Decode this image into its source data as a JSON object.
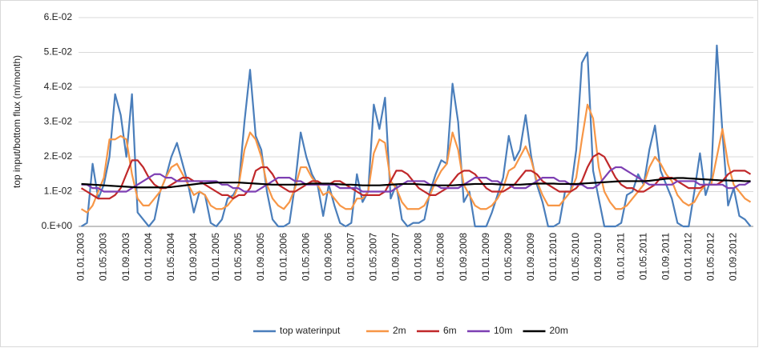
{
  "chart_data": {
    "type": "line",
    "y_label": "top input/bottom flux (m/month)",
    "categories": [
      "01.01.2003",
      null,
      null,
      null,
      "01.05.2003",
      null,
      null,
      null,
      "01.09.2003",
      null,
      null,
      null,
      "01.01.2004",
      null,
      null,
      null,
      "01.05.2004",
      null,
      null,
      null,
      "01.09.2004",
      null,
      null,
      null,
      "01.01.2005",
      null,
      null,
      null,
      "01.05.2005",
      null,
      null,
      null,
      "01.09.2005",
      null,
      null,
      null,
      "01.01.2006",
      null,
      null,
      null,
      "01.05.2006",
      null,
      null,
      null,
      "01.09.2006",
      null,
      null,
      null,
      "01.01.2007",
      null,
      null,
      null,
      "01.05.2007",
      null,
      null,
      null,
      "01.09.2007",
      null,
      null,
      null,
      "01.01.2008",
      null,
      null,
      null,
      "01.05.2008",
      null,
      null,
      null,
      "01.09.2008",
      null,
      null,
      null,
      "01.01.2009",
      null,
      null,
      null,
      "01.05.2009",
      null,
      null,
      null,
      "01.09.2009",
      null,
      null,
      null,
      "01.01.2010",
      null,
      null,
      null,
      "01.05.2010",
      null,
      null,
      null,
      "01.09.2010",
      null,
      null,
      null,
      "01.01.2011",
      null,
      null,
      null,
      "01.05.2011",
      null,
      null,
      null,
      "01.09.2011",
      null,
      null,
      null,
      "01.01.2012",
      null,
      null,
      null,
      "01.05.2012",
      null,
      null,
      null,
      "01.09.2012",
      null,
      null,
      null
    ],
    "series": [
      {
        "name": "top waterinput",
        "color": "#4a7ebb",
        "values": [
          0.0,
          0.001,
          0.018,
          0.008,
          0.012,
          0.02,
          0.038,
          0.032,
          0.02,
          0.038,
          0.004,
          0.002,
          0.0,
          0.002,
          0.01,
          0.014,
          0.02,
          0.024,
          0.018,
          0.012,
          0.004,
          0.01,
          0.009,
          0.001,
          0.0,
          0.002,
          0.008,
          0.009,
          0.012,
          0.03,
          0.045,
          0.026,
          0.022,
          0.01,
          0.002,
          0.0,
          0.0,
          0.001,
          0.012,
          0.027,
          0.02,
          0.015,
          0.012,
          0.003,
          0.012,
          0.006,
          0.001,
          0.0,
          0.001,
          0.015,
          0.007,
          0.01,
          0.035,
          0.028,
          0.037,
          0.008,
          0.012,
          0.002,
          0.0,
          0.001,
          0.001,
          0.002,
          0.01,
          0.015,
          0.019,
          0.018,
          0.041,
          0.03,
          0.007,
          0.01,
          0.0,
          0.0,
          0.0,
          0.004,
          0.009,
          0.014,
          0.026,
          0.019,
          0.022,
          0.032,
          0.02,
          0.012,
          0.007,
          0.0,
          0.0,
          0.001,
          0.01,
          0.01,
          0.022,
          0.047,
          0.05,
          0.016,
          0.008,
          0.0,
          0.0,
          0.0,
          0.001,
          0.009,
          0.01,
          0.015,
          0.012,
          0.022,
          0.029,
          0.016,
          0.012,
          0.008,
          0.001,
          0.0,
          0.0,
          0.01,
          0.021,
          0.009,
          0.014,
          0.052,
          0.027,
          0.006,
          0.011,
          0.003,
          0.002,
          0.0
        ]
      },
      {
        "name": "2m",
        "color": "#f79646",
        "values": [
          0.005,
          0.004,
          0.006,
          0.01,
          0.014,
          0.025,
          0.025,
          0.026,
          0.025,
          0.015,
          0.008,
          0.006,
          0.006,
          0.008,
          0.01,
          0.014,
          0.017,
          0.018,
          0.015,
          0.012,
          0.009,
          0.01,
          0.009,
          0.006,
          0.005,
          0.005,
          0.006,
          0.008,
          0.012,
          0.022,
          0.027,
          0.025,
          0.02,
          0.012,
          0.008,
          0.006,
          0.005,
          0.007,
          0.011,
          0.017,
          0.017,
          0.014,
          0.012,
          0.009,
          0.01,
          0.008,
          0.006,
          0.005,
          0.005,
          0.008,
          0.008,
          0.01,
          0.021,
          0.025,
          0.024,
          0.013,
          0.011,
          0.007,
          0.005,
          0.005,
          0.005,
          0.006,
          0.009,
          0.013,
          0.016,
          0.018,
          0.027,
          0.022,
          0.012,
          0.009,
          0.006,
          0.005,
          0.005,
          0.006,
          0.008,
          0.011,
          0.016,
          0.017,
          0.02,
          0.023,
          0.019,
          0.013,
          0.009,
          0.006,
          0.006,
          0.006,
          0.008,
          0.01,
          0.014,
          0.025,
          0.035,
          0.031,
          0.017,
          0.01,
          0.007,
          0.005,
          0.005,
          0.006,
          0.008,
          0.01,
          0.012,
          0.017,
          0.02,
          0.018,
          0.015,
          0.013,
          0.009,
          0.007,
          0.006,
          0.007,
          0.01,
          0.012,
          0.012,
          0.02,
          0.028,
          0.018,
          0.012,
          0.01,
          0.008,
          0.007
        ]
      },
      {
        "name": "6m",
        "color": "#c0282a",
        "values": [
          0.011,
          0.01,
          0.009,
          0.008,
          0.008,
          0.008,
          0.009,
          0.011,
          0.015,
          0.019,
          0.019,
          0.017,
          0.014,
          0.012,
          0.011,
          0.011,
          0.012,
          0.013,
          0.014,
          0.014,
          0.013,
          0.013,
          0.012,
          0.011,
          0.01,
          0.009,
          0.009,
          0.008,
          0.009,
          0.009,
          0.011,
          0.016,
          0.017,
          0.017,
          0.015,
          0.012,
          0.011,
          0.01,
          0.01,
          0.011,
          0.012,
          0.013,
          0.013,
          0.012,
          0.012,
          0.013,
          0.013,
          0.012,
          0.011,
          0.01,
          0.009,
          0.009,
          0.009,
          0.009,
          0.01,
          0.013,
          0.016,
          0.016,
          0.015,
          0.013,
          0.011,
          0.01,
          0.009,
          0.009,
          0.01,
          0.011,
          0.013,
          0.015,
          0.016,
          0.016,
          0.015,
          0.013,
          0.011,
          0.01,
          0.01,
          0.01,
          0.011,
          0.012,
          0.014,
          0.016,
          0.016,
          0.015,
          0.013,
          0.012,
          0.011,
          0.01,
          0.01,
          0.01,
          0.011,
          0.013,
          0.017,
          0.02,
          0.021,
          0.02,
          0.017,
          0.014,
          0.012,
          0.011,
          0.011,
          0.01,
          0.01,
          0.011,
          0.012,
          0.014,
          0.014,
          0.014,
          0.013,
          0.012,
          0.011,
          0.011,
          0.011,
          0.012,
          0.012,
          0.012,
          0.013,
          0.015,
          0.016,
          0.016,
          0.016,
          0.015
        ]
      },
      {
        "name": "10m",
        "color": "#7d3fb3",
        "values": [
          0.012,
          0.012,
          0.011,
          0.011,
          0.01,
          0.01,
          0.01,
          0.01,
          0.01,
          0.011,
          0.012,
          0.013,
          0.014,
          0.015,
          0.015,
          0.014,
          0.014,
          0.013,
          0.013,
          0.013,
          0.013,
          0.013,
          0.013,
          0.013,
          0.013,
          0.012,
          0.012,
          0.011,
          0.011,
          0.01,
          0.01,
          0.01,
          0.011,
          0.012,
          0.013,
          0.014,
          0.014,
          0.014,
          0.013,
          0.013,
          0.012,
          0.012,
          0.012,
          0.012,
          0.012,
          0.012,
          0.011,
          0.011,
          0.011,
          0.011,
          0.01,
          0.01,
          0.01,
          0.01,
          0.01,
          0.01,
          0.011,
          0.012,
          0.013,
          0.013,
          0.013,
          0.013,
          0.012,
          0.012,
          0.011,
          0.011,
          0.011,
          0.011,
          0.012,
          0.013,
          0.014,
          0.014,
          0.014,
          0.013,
          0.013,
          0.012,
          0.012,
          0.011,
          0.011,
          0.011,
          0.012,
          0.013,
          0.014,
          0.014,
          0.014,
          0.013,
          0.013,
          0.012,
          0.012,
          0.012,
          0.011,
          0.011,
          0.012,
          0.014,
          0.016,
          0.017,
          0.017,
          0.016,
          0.015,
          0.014,
          0.013,
          0.012,
          0.012,
          0.012,
          0.012,
          0.012,
          0.013,
          0.013,
          0.013,
          0.013,
          0.012,
          0.012,
          0.012,
          0.012,
          0.012,
          0.011,
          0.011,
          0.012,
          0.012,
          0.013
        ]
      },
      {
        "name": "20m",
        "color": "#000000",
        "values": [
          0.0122,
          0.0121,
          0.012,
          0.0119,
          0.0118,
          0.0117,
          0.0116,
          0.0115,
          0.0114,
          0.0113,
          0.0112,
          0.0112,
          0.0112,
          0.0112,
          0.0112,
          0.0112,
          0.0113,
          0.0115,
          0.0117,
          0.0119,
          0.0121,
          0.0123,
          0.0124,
          0.0125,
          0.0126,
          0.0126,
          0.0126,
          0.0126,
          0.0126,
          0.0125,
          0.0124,
          0.0123,
          0.0122,
          0.0121,
          0.012,
          0.012,
          0.012,
          0.012,
          0.012,
          0.0121,
          0.0122,
          0.0123,
          0.0123,
          0.0123,
          0.0123,
          0.0122,
          0.0121,
          0.012,
          0.012,
          0.0119,
          0.0118,
          0.0118,
          0.0118,
          0.0118,
          0.0119,
          0.012,
          0.0121,
          0.0122,
          0.0122,
          0.0122,
          0.0121,
          0.012,
          0.0119,
          0.0118,
          0.0118,
          0.0118,
          0.0118,
          0.0119,
          0.012,
          0.0121,
          0.0122,
          0.0122,
          0.0122,
          0.0122,
          0.0121,
          0.012,
          0.012,
          0.012,
          0.012,
          0.0121,
          0.0122,
          0.0123,
          0.0123,
          0.0123,
          0.0123,
          0.0122,
          0.0122,
          0.0122,
          0.0122,
          0.0123,
          0.0124,
          0.0125,
          0.0126,
          0.0127,
          0.0128,
          0.0129,
          0.013,
          0.013,
          0.013,
          0.013,
          0.013,
          0.0131,
          0.0133,
          0.0135,
          0.0137,
          0.0138,
          0.0139,
          0.0139,
          0.0138,
          0.0137,
          0.0136,
          0.0135,
          0.0134,
          0.0133,
          0.0132,
          0.0132,
          0.0131,
          0.0131,
          0.013,
          0.013
        ]
      }
    ],
    "ylim": [
      0,
      0.06
    ],
    "yticks": [
      {
        "value": 0,
        "label": "0.E+00"
      },
      {
        "value": 0.01,
        "label": "1.E-02"
      },
      {
        "value": 0.02,
        "label": "2.E-02"
      },
      {
        "value": 0.03,
        "label": "3.E-02"
      },
      {
        "value": 0.04,
        "label": "4.E-02"
      },
      {
        "value": 0.05,
        "label": "5.E-02"
      },
      {
        "value": 0.06,
        "label": "6.E-02"
      }
    ],
    "grid": true,
    "legend": "bottom"
  }
}
